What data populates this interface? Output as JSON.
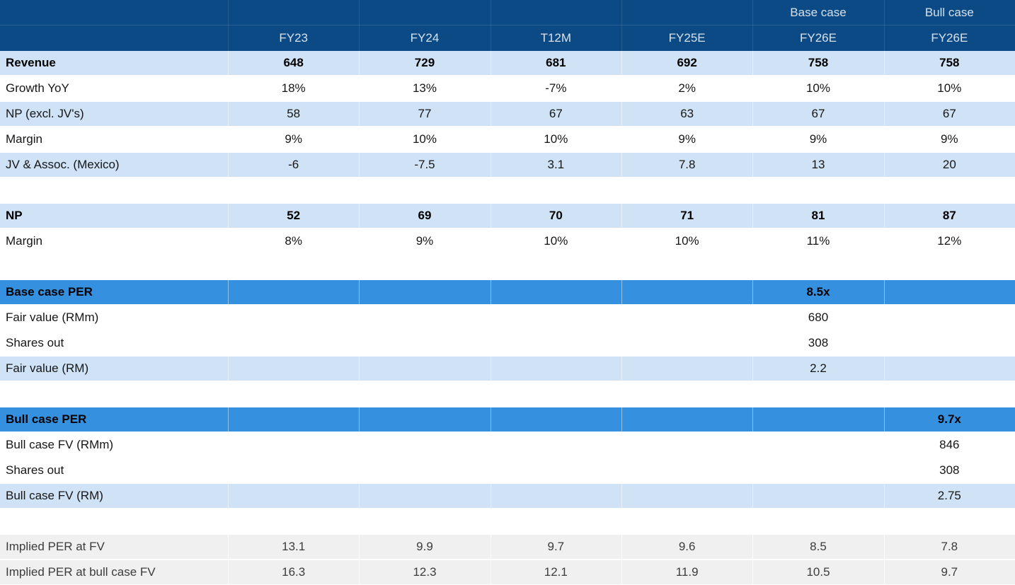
{
  "colors": {
    "header_bg": "#0b4a84",
    "header_text": "#d7e1ed",
    "row_light_blue": "#cfe2f6",
    "section_blue": "#3590e0",
    "row_gray": "#f0f0f0",
    "row_white": "#ffffff",
    "body_text": "#161616"
  },
  "chart_data": {
    "type": "table",
    "header": {
      "group_labels": [
        "",
        "",
        "",
        "",
        "",
        "Base case",
        "Bull case"
      ],
      "columns": [
        "",
        "FY23",
        "FY24",
        "T12M",
        "FY25E",
        "FY26E",
        "FY26E"
      ]
    },
    "rows": [
      {
        "label": "Revenue",
        "values": [
          "648",
          "729",
          "681",
          "692",
          "758",
          "758"
        ],
        "style": "blue",
        "bold": true
      },
      {
        "label": "Growth YoY",
        "values": [
          "18%",
          "13%",
          "-7%",
          "2%",
          "10%",
          "10%"
        ],
        "style": "white",
        "bold": false
      },
      {
        "label": "NP (excl. JV's)",
        "values": [
          "58",
          "77",
          "67",
          "63",
          "67",
          "67"
        ],
        "style": "blue",
        "bold": false
      },
      {
        "label": "Margin",
        "values": [
          "9%",
          "10%",
          "10%",
          "9%",
          "9%",
          "9%"
        ],
        "style": "white",
        "bold": false
      },
      {
        "label": "JV & Assoc. (Mexico)",
        "values": [
          "-6",
          "-7.5",
          "3.1",
          "7.8",
          "13",
          "20"
        ],
        "style": "blue",
        "bold": false
      },
      {
        "label": "",
        "values": [
          "",
          "",
          "",
          "",
          "",
          ""
        ],
        "style": "spacer",
        "bold": false
      },
      {
        "label": "NP",
        "values": [
          "52",
          "69",
          "70",
          "71",
          "81",
          "87"
        ],
        "style": "blue",
        "bold": true
      },
      {
        "label": "Margin",
        "values": [
          "8%",
          "9%",
          "10%",
          "10%",
          "11%",
          "12%"
        ],
        "style": "white",
        "bold": false
      },
      {
        "label": "",
        "values": [
          "",
          "",
          "",
          "",
          "",
          ""
        ],
        "style": "spacer",
        "bold": false
      },
      {
        "label": "Base case PER",
        "values": [
          "",
          "",
          "",
          "",
          "8.5x",
          ""
        ],
        "style": "section",
        "bold": true
      },
      {
        "label": "Fair value (RMm)",
        "values": [
          "",
          "",
          "",
          "",
          "680",
          ""
        ],
        "style": "white",
        "bold": false
      },
      {
        "label": "Shares out",
        "values": [
          "",
          "",
          "",
          "",
          "308",
          ""
        ],
        "style": "white",
        "bold": false
      },
      {
        "label": "Fair value (RM)",
        "values": [
          "",
          "",
          "",
          "",
          "2.2",
          ""
        ],
        "style": "blue",
        "bold": false
      },
      {
        "label": "",
        "values": [
          "",
          "",
          "",
          "",
          "",
          ""
        ],
        "style": "spacer",
        "bold": false
      },
      {
        "label": "Bull case PER",
        "values": [
          "",
          "",
          "",
          "",
          "",
          "9.7x"
        ],
        "style": "section",
        "bold": true
      },
      {
        "label": "Bull case FV (RMm)",
        "values": [
          "",
          "",
          "",
          "",
          "",
          "846"
        ],
        "style": "white",
        "bold": false
      },
      {
        "label": "Shares out",
        "values": [
          "",
          "",
          "",
          "",
          "",
          "308"
        ],
        "style": "white",
        "bold": false
      },
      {
        "label": "Bull case FV (RM)",
        "values": [
          "",
          "",
          "",
          "",
          "",
          "2.75"
        ],
        "style": "blue",
        "bold": false
      },
      {
        "label": "",
        "values": [
          "",
          "",
          "",
          "",
          "",
          ""
        ],
        "style": "spacer",
        "bold": false
      },
      {
        "label": "Implied PER at FV",
        "values": [
          "13.1",
          "9.9",
          "9.7",
          "9.6",
          "8.5",
          "7.8"
        ],
        "style": "gray",
        "bold": false
      },
      {
        "label": "Implied PER at bull case FV",
        "values": [
          "16.3",
          "12.3",
          "12.1",
          "11.9",
          "10.5",
          "9.7"
        ],
        "style": "gray",
        "bold": false
      }
    ]
  }
}
